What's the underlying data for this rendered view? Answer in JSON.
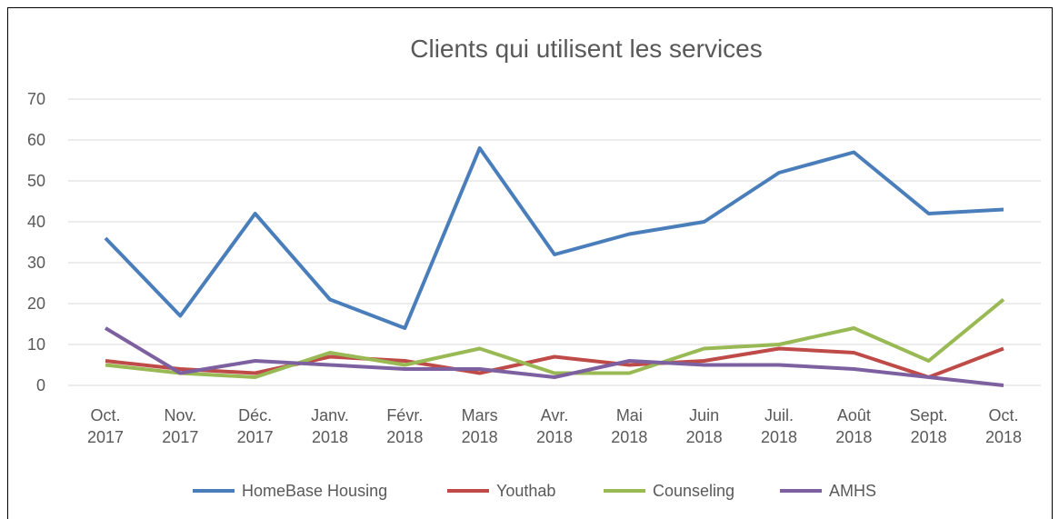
{
  "chart_data": {
    "type": "line",
    "title": "Clients qui utilisent les services",
    "categories": [
      "Oct. 2017",
      "Nov. 2017",
      "Déc. 2017",
      "Janv. 2018",
      "Févr. 2018",
      "Mars 2018",
      "Avr. 2018",
      "Mai 2018",
      "Juin 2018",
      "Juil. 2018",
      "Août 2018",
      "Sept. 2018",
      "Oct. 2018"
    ],
    "series": [
      {
        "name": "HomeBase Housing",
        "color": "#4a7ebb",
        "values": [
          36,
          17,
          42,
          21,
          14,
          58,
          32,
          37,
          40,
          52,
          57,
          42,
          43
        ]
      },
      {
        "name": "Youthab",
        "color": "#be4b48",
        "values": [
          6,
          4,
          3,
          7,
          6,
          3,
          7,
          5,
          6,
          9,
          8,
          2,
          9
        ]
      },
      {
        "name": "Counseling",
        "color": "#98b954",
        "values": [
          5,
          3,
          2,
          8,
          5,
          9,
          3,
          3,
          9,
          10,
          14,
          6,
          21
        ]
      },
      {
        "name": "AMHS",
        "color": "#7d60a0",
        "values": [
          14,
          3,
          6,
          5,
          4,
          4,
          2,
          6,
          5,
          5,
          4,
          2,
          0
        ]
      }
    ],
    "ylim": [
      0,
      70
    ],
    "yticks": [
      0,
      10,
      20,
      30,
      40,
      50,
      60,
      70
    ],
    "grid": true,
    "legend": "bottom"
  }
}
